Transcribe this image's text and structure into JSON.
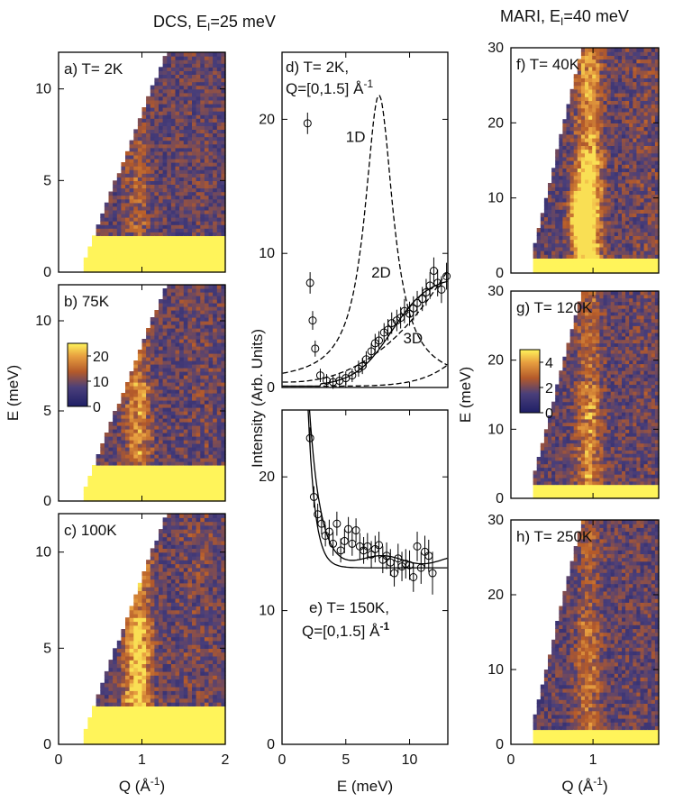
{
  "figure": {
    "header_dcs": "DCS, E",
    "header_dcs_sub": "I",
    "header_dcs_rest": "=25 meV",
    "header_mari": "MARI, E",
    "header_mari_sub": "I",
    "header_mari_rest": "=40 meV"
  },
  "chart_data": [
    {
      "id": "a",
      "type": "heatmap",
      "label": "a) T= 2K",
      "x_range": [
        0,
        2
      ],
      "y_range": [
        0,
        12
      ],
      "x_ticks": [],
      "y_ticks": [
        0,
        5,
        10
      ],
      "ylabel": "",
      "xlabel": "",
      "feature": "weak ridge near Q=0.9 A^-1",
      "feature_strength": 0.25,
      "kinematic_k": 10.5,
      "qmin": 0.3,
      "elastic_top": 2.0
    },
    {
      "id": "b",
      "type": "heatmap",
      "label": "b) 75K",
      "x_range": [
        0,
        2
      ],
      "y_range": [
        0,
        12
      ],
      "x_ticks": [],
      "y_ticks": [
        0,
        5,
        10
      ],
      "ylabel": "E (meV)",
      "xlabel": "",
      "colorbar": {
        "ticks": [
          0,
          10,
          20
        ],
        "range": [
          0,
          25
        ]
      },
      "feature_strength": 0.5,
      "kinematic_k": 10.5,
      "qmin": 0.3,
      "elastic_top": 2.0
    },
    {
      "id": "c",
      "type": "heatmap",
      "label": "c) 100K",
      "x_range": [
        0,
        2
      ],
      "y_range": [
        0,
        12
      ],
      "x_ticks": [
        0,
        1,
        2
      ],
      "y_ticks": [
        0,
        5,
        10
      ],
      "ylabel": "",
      "xlabel": "Q (Å",
      "xlabel_sup": "-1",
      "xlabel_end": ")",
      "feature_strength": 0.8,
      "kinematic_k": 10.5,
      "qmin": 0.3,
      "elastic_top": 2.0
    },
    {
      "id": "d",
      "type": "scatter",
      "label": "d) T= 2K,",
      "label2": "Q=[0,1.5] Å",
      "label2_sup": "-1",
      "x_range": [
        0,
        13
      ],
      "y_range": [
        0,
        25
      ],
      "x_ticks": [
        0,
        5,
        10
      ],
      "y_ticks": [
        0,
        10,
        20
      ],
      "x_ticklabels_shown": false,
      "ylabel": "Intensity (Arb. Units)",
      "annotations": [
        "1D",
        "2D",
        "3D"
      ],
      "points": [
        [
          2.0,
          19.7,
          0.8
        ],
        [
          2.2,
          7.8,
          0.8
        ],
        [
          2.4,
          5.0,
          0.7
        ],
        [
          2.6,
          2.9,
          0.6
        ],
        [
          3.0,
          0.9,
          0.5
        ],
        [
          3.5,
          0.5,
          0.5
        ],
        [
          4.0,
          0.4,
          0.5
        ],
        [
          4.5,
          0.5,
          0.5
        ],
        [
          5.0,
          0.7,
          0.5
        ],
        [
          5.5,
          0.9,
          0.5
        ],
        [
          6.0,
          1.4,
          0.6
        ],
        [
          6.3,
          1.6,
          0.6
        ],
        [
          6.6,
          2.1,
          0.6
        ],
        [
          7.0,
          2.7,
          0.6
        ],
        [
          7.3,
          3.3,
          0.7
        ],
        [
          7.6,
          3.5,
          0.7
        ],
        [
          8.0,
          4.1,
          0.7
        ],
        [
          8.3,
          4.3,
          0.8
        ],
        [
          8.6,
          4.8,
          0.8
        ],
        [
          9.0,
          5.0,
          0.8
        ],
        [
          9.3,
          5.2,
          0.8
        ],
        [
          9.6,
          5.7,
          0.9
        ],
        [
          10.0,
          5.5,
          0.9
        ],
        [
          10.3,
          5.9,
          0.9
        ],
        [
          10.6,
          6.3,
          0.9
        ],
        [
          11.0,
          6.6,
          0.9
        ],
        [
          11.3,
          7.1,
          1.0
        ],
        [
          11.6,
          7.6,
          1.0
        ],
        [
          11.9,
          8.7,
          1.0
        ],
        [
          12.2,
          7.8,
          1.0
        ],
        [
          12.5,
          7.3,
          1.0
        ],
        [
          12.9,
          8.3,
          1.0
        ]
      ]
    },
    {
      "id": "e",
      "type": "scatter",
      "label": "e) T= 150K,",
      "label2": "Q=[0,1.5] Å",
      "label2_sup": "-1",
      "x_range": [
        0,
        13
      ],
      "y_range": [
        0,
        25
      ],
      "x_ticks": [
        0,
        5,
        10
      ],
      "y_ticks": [
        0,
        10,
        20
      ],
      "xlabel": "E (meV)",
      "points": [
        [
          2.2,
          22.9,
          0.8
        ],
        [
          2.5,
          18.5,
          0.8
        ],
        [
          2.8,
          17.2,
          0.8
        ],
        [
          3.1,
          16.5,
          0.8
        ],
        [
          3.4,
          15.6,
          0.8
        ],
        [
          3.7,
          15.9,
          0.9
        ],
        [
          4.0,
          15.0,
          0.9
        ],
        [
          4.3,
          16.5,
          0.9
        ],
        [
          4.6,
          14.5,
          0.9
        ],
        [
          4.9,
          15.2,
          0.9
        ],
        [
          5.2,
          16.1,
          0.9
        ],
        [
          5.5,
          15.0,
          0.9
        ],
        [
          5.8,
          16.0,
          0.9
        ],
        [
          6.1,
          14.8,
          1.0
        ],
        [
          6.4,
          14.5,
          1.0
        ],
        [
          6.7,
          14.8,
          1.0
        ],
        [
          7.0,
          14.2,
          1.0
        ],
        [
          7.3,
          14.6,
          1.0
        ],
        [
          7.6,
          14.9,
          1.0
        ],
        [
          7.9,
          13.8,
          1.0
        ],
        [
          8.2,
          14.1,
          1.0
        ],
        [
          8.5,
          13.6,
          1.0
        ],
        [
          8.8,
          12.8,
          1.0
        ],
        [
          9.1,
          13.9,
          1.1
        ],
        [
          9.4,
          13.3,
          1.1
        ],
        [
          9.7,
          13.5,
          1.1
        ],
        [
          10.0,
          13.4,
          1.1
        ],
        [
          10.3,
          12.5,
          1.1
        ],
        [
          10.6,
          14.8,
          1.1
        ],
        [
          10.9,
          13.2,
          1.2
        ],
        [
          11.2,
          14.4,
          1.2
        ],
        [
          11.5,
          14.1,
          1.2
        ],
        [
          11.8,
          12.8,
          1.6
        ]
      ]
    },
    {
      "id": "f",
      "type": "heatmap",
      "label": "f) T= 40K",
      "x_range": [
        0,
        1.8
      ],
      "y_range": [
        0,
        30
      ],
      "x_ticks": [],
      "y_ticks": [
        0,
        10,
        20,
        30
      ],
      "ylabel": "",
      "feature": "spot near Q=0.85, E=7 meV",
      "feature_strength": 0.9,
      "kinematic_k": 40.8,
      "qmin": 0.25,
      "elastic_top": 2.0
    },
    {
      "id": "g",
      "type": "heatmap",
      "label": "g) T= 120K",
      "x_range": [
        0,
        1.8
      ],
      "y_range": [
        0,
        30
      ],
      "x_ticks": [],
      "y_ticks": [
        0,
        10,
        20,
        30
      ],
      "ylabel": "E (meV)",
      "colorbar": {
        "ticks": [
          0,
          2,
          4
        ],
        "range": [
          0,
          5
        ]
      },
      "feature_strength": 0.5,
      "kinematic_k": 40.8,
      "qmin": 0.25,
      "elastic_top": 2.0
    },
    {
      "id": "h",
      "type": "heatmap",
      "label": "h) T= 250K",
      "x_range": [
        0,
        1.8
      ],
      "y_range": [
        0,
        30
      ],
      "x_ticks": [
        0,
        1
      ],
      "y_ticks": [
        0,
        10,
        20,
        30
      ],
      "ylabel": "",
      "xlabel": "Q (Å",
      "xlabel_sup": "-1",
      "xlabel_end": ")",
      "feature_strength": 0.35,
      "kinematic_k": 40.8,
      "qmin": 0.25,
      "elastic_top": 2.0
    }
  ]
}
